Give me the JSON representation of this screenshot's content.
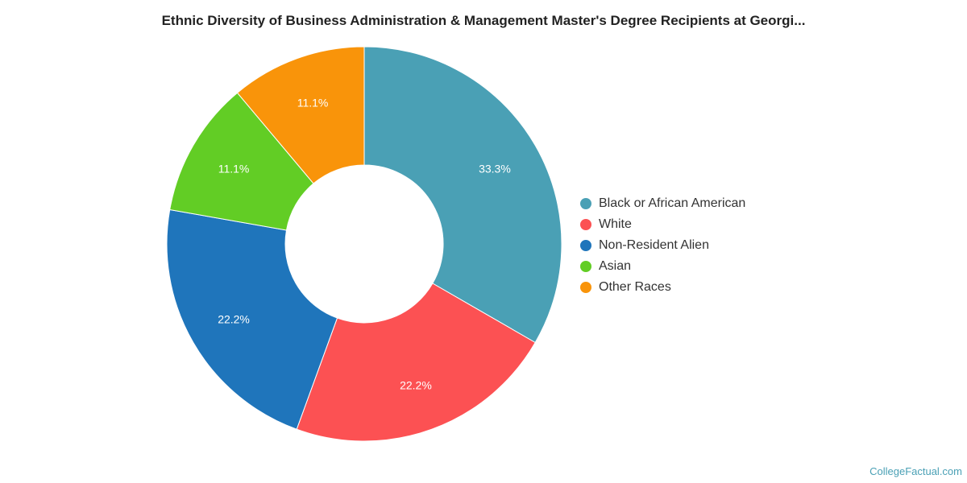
{
  "chart_data": {
    "type": "pie",
    "title": "Ethnic Diversity of Business Administration & Management Master's Degree Recipients at Georgi...",
    "donut": true,
    "legend_position": "right",
    "slices": [
      {
        "label": "Black or African American",
        "value": 33.3,
        "display": "33.3%",
        "color": "#4aa0b5"
      },
      {
        "label": "White",
        "value": 22.2,
        "display": "22.2%",
        "color": "#fc5153"
      },
      {
        "label": "Non-Resident Alien",
        "value": 22.2,
        "display": "22.2%",
        "color": "#1f75bb"
      },
      {
        "label": "Asian",
        "value": 11.1,
        "display": "11.1%",
        "color": "#62cd25"
      },
      {
        "label": "Other Races",
        "value": 11.1,
        "display": "11.1%",
        "color": "#f9940a"
      }
    ]
  },
  "credit": "CollegeFactual.com"
}
